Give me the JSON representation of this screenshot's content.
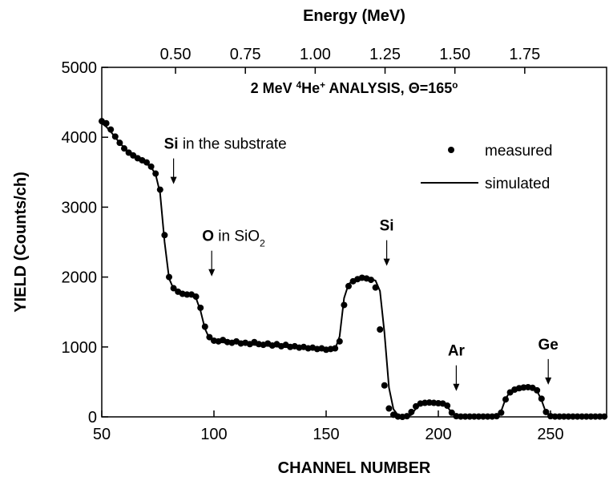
{
  "chart_data": {
    "type": "scatter",
    "title": [
      {
        "text": "2 MeV ",
        "style": "normal"
      },
      {
        "text": "4",
        "style": "sup"
      },
      {
        "text": "He",
        "style": "normal"
      },
      {
        "text": "+",
        "style": "sup"
      },
      {
        "text": " ANALYSIS, ",
        "style": "normal"
      },
      {
        "text": "Θ",
        "style": "normal"
      },
      {
        "text": "=165",
        "style": "normal"
      },
      {
        "text": "o",
        "style": "sup"
      }
    ],
    "x_label": "CHANNEL NUMBER",
    "y_label": "YIELD (Counts/ch)",
    "x2_label": "Energy (MeV)",
    "xlim": [
      50,
      275
    ],
    "ylim": [
      0,
      5000
    ],
    "x2lim": [
      0.236,
      2.043
    ],
    "xticks": [
      50,
      100,
      150,
      200,
      250
    ],
    "yticks": [
      0,
      1000,
      2000,
      3000,
      4000,
      5000
    ],
    "x2ticks": [
      {
        "value": 0.5,
        "label": "0.50"
      },
      {
        "value": 0.75,
        "label": "0.75"
      },
      {
        "value": 1,
        "label": "1.00"
      },
      {
        "value": 1.25,
        "label": "1.25"
      },
      {
        "value": 1.5,
        "label": "1.50"
      },
      {
        "value": 1.75,
        "label": "1.75"
      }
    ],
    "legend": "upper right",
    "x": [
      50,
      52,
      54,
      56,
      58,
      60,
      62,
      64,
      66,
      68,
      70,
      72,
      74,
      76,
      78,
      80,
      82,
      84,
      86,
      88,
      90,
      92,
      94,
      96,
      98,
      100,
      102,
      104,
      106,
      108,
      110,
      112,
      114,
      116,
      118,
      120,
      122,
      124,
      126,
      128,
      130,
      132,
      134,
      136,
      138,
      140,
      142,
      144,
      146,
      148,
      150,
      152,
      154,
      156,
      158,
      160,
      162,
      164,
      166,
      168,
      170,
      172,
      174,
      176,
      178,
      180,
      182,
      184,
      186,
      188,
      190,
      192,
      194,
      196,
      198,
      200,
      202,
      204,
      206,
      208,
      210,
      212,
      214,
      216,
      218,
      220,
      222,
      224,
      226,
      228,
      230,
      232,
      234,
      236,
      238,
      240,
      242,
      244,
      246,
      248,
      250,
      252,
      254,
      256,
      258,
      260,
      262,
      264,
      266,
      268,
      270,
      272,
      274
    ],
    "series": [
      {
        "name": "measured",
        "mark": "dot",
        "color": "#000000",
        "values": [
          4230,
          4200,
          4110,
          4010,
          3920,
          3840,
          3780,
          3740,
          3700,
          3670,
          3640,
          3580,
          3480,
          3250,
          2600,
          2000,
          1840,
          1790,
          1760,
          1750,
          1750,
          1720,
          1560,
          1290,
          1140,
          1090,
          1080,
          1100,
          1070,
          1060,
          1080,
          1050,
          1060,
          1040,
          1070,
          1040,
          1030,
          1050,
          1020,
          1040,
          1010,
          1030,
          1000,
          1010,
          990,
          1000,
          980,
          990,
          970,
          980,
          960,
          970,
          980,
          1080,
          1600,
          1870,
          1940,
          1970,
          1990,
          1980,
          1960,
          1850,
          1250,
          450,
          120,
          30,
          5,
          0,
          10,
          70,
          150,
          190,
          200,
          205,
          200,
          195,
          190,
          160,
          60,
          10,
          5,
          5,
          5,
          5,
          5,
          5,
          5,
          5,
          10,
          60,
          250,
          350,
          390,
          410,
          420,
          425,
          415,
          380,
          260,
          70,
          10,
          5,
          5,
          5,
          5,
          5,
          5,
          5,
          5,
          5,
          5,
          5,
          5
        ]
      },
      {
        "name": "simulated",
        "mark": "line",
        "color": "#000000",
        "values": [
          4200,
          4150,
          4080,
          4000,
          3920,
          3850,
          3790,
          3740,
          3700,
          3660,
          3620,
          3570,
          3470,
          3200,
          2500,
          1980,
          1830,
          1780,
          1760,
          1750,
          1740,
          1700,
          1520,
          1260,
          1120,
          1080,
          1070,
          1065,
          1060,
          1055,
          1050,
          1045,
          1040,
          1035,
          1030,
          1025,
          1020,
          1015,
          1010,
          1005,
          1000,
          998,
          995,
          990,
          985,
          980,
          975,
          972,
          970,
          968,
          966,
          965,
          968,
          1150,
          1700,
          1900,
          1950,
          1970,
          1980,
          1980,
          1970,
          1950,
          1800,
          1200,
          420,
          110,
          25,
          5,
          5,
          30,
          120,
          180,
          200,
          205,
          205,
          200,
          190,
          150,
          50,
          10,
          5,
          5,
          5,
          5,
          5,
          5,
          5,
          5,
          15,
          80,
          260,
          360,
          400,
          410,
          420,
          420,
          410,
          370,
          240,
          60,
          10,
          5,
          5,
          5,
          5,
          5,
          5,
          5,
          5,
          5,
          5,
          5,
          5
        ]
      }
    ],
    "annotations": [
      {
        "x": 82,
        "y": 3330,
        "align": "start",
        "parts": [
          {
            "text": "Si",
            "style": "bold"
          },
          {
            "text": " in the substrate",
            "style": "normal"
          }
        ]
      },
      {
        "x": 99,
        "y": 2010,
        "align": "start",
        "parts": [
          {
            "text": "O",
            "style": "bold"
          },
          {
            "text": " in SiO",
            "style": "normal"
          },
          {
            "text": "2",
            "style": "sub"
          }
        ]
      },
      {
        "x": 177,
        "y": 2160,
        "align": "middle",
        "parts": [
          {
            "text": "Si",
            "style": "bold"
          }
        ]
      },
      {
        "x": 208,
        "y": 370,
        "align": "middle",
        "parts": [
          {
            "text": "Ar",
            "style": "bold"
          }
        ]
      },
      {
        "x": 249,
        "y": 460,
        "align": "middle",
        "parts": [
          {
            "text": "Ge",
            "style": "bold"
          }
        ]
      }
    ]
  }
}
